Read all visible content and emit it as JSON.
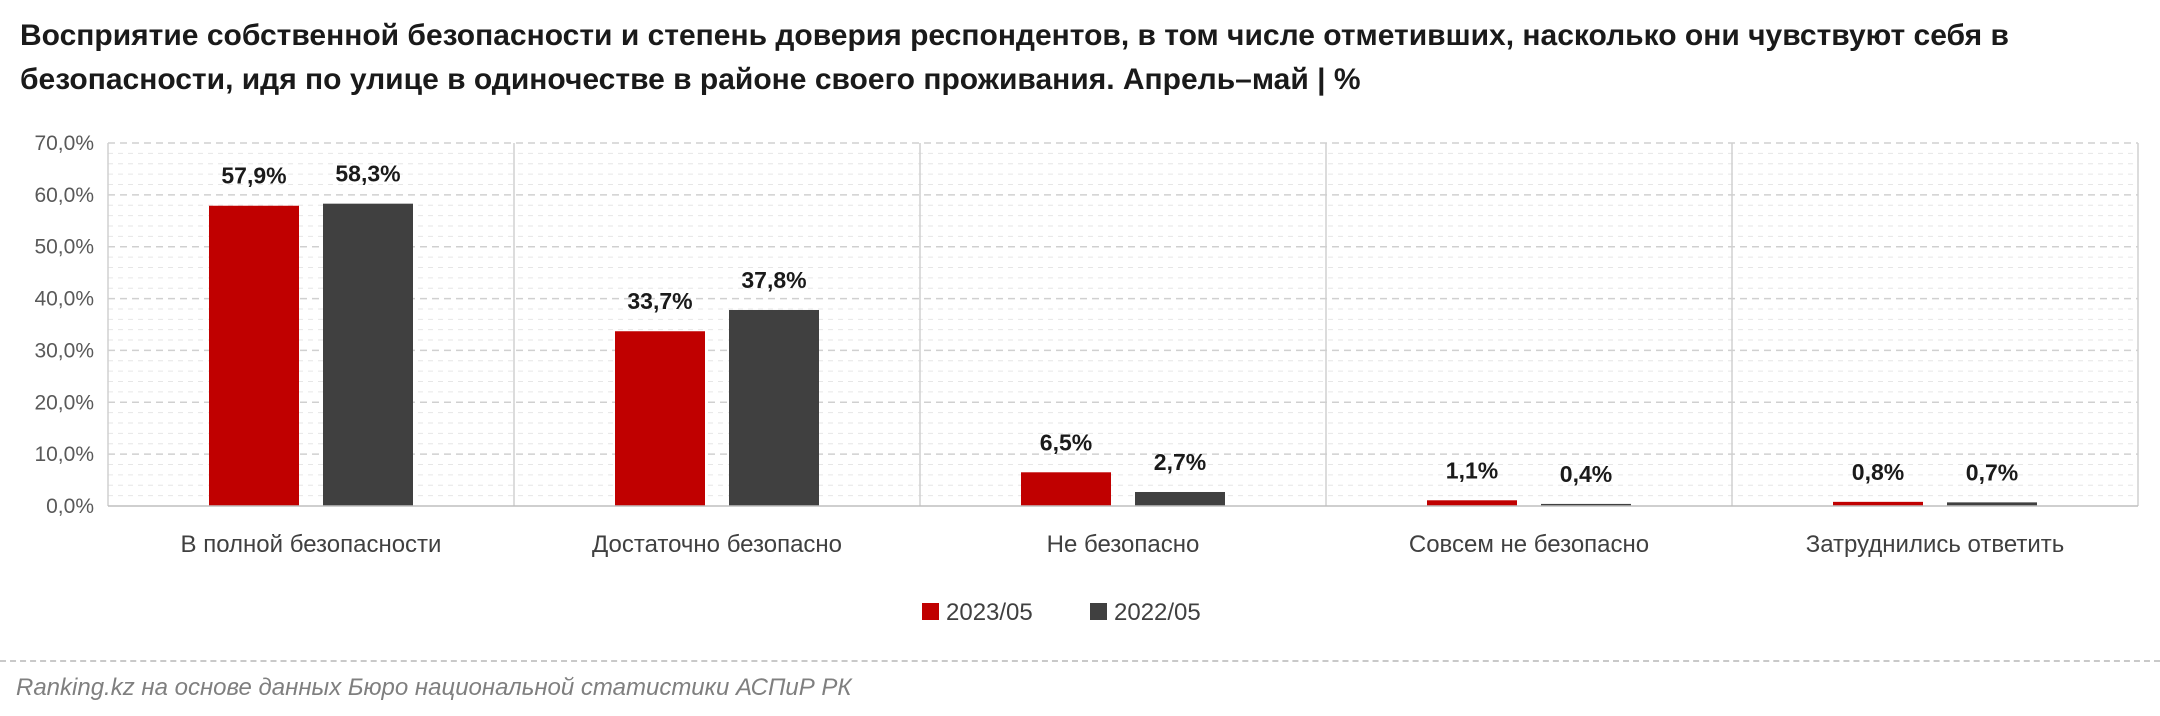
{
  "chart_data": {
    "type": "bar",
    "title": "Восприятие собственной безопасности и степень доверия респондентов, в том числе отметивших, насколько они чувствуют себя в безопасности, идя по улице в одиночестве в районе своего проживания. Апрель–май | %",
    "categories": [
      "В полной безопасности",
      "Достаточно безопасно",
      "Не безопасно",
      "Совсем не безопасно",
      "Затруднились ответить"
    ],
    "series": [
      {
        "name": "2023/05",
        "color": "#c00000",
        "values": [
          57.9,
          33.7,
          6.5,
          1.1,
          0.8
        ],
        "labels": [
          "57,9%",
          "33,7%",
          "6,5%",
          "1,1%",
          "0,8%"
        ]
      },
      {
        "name": "2022/05",
        "color": "#404040",
        "values": [
          58.3,
          37.8,
          2.7,
          0.4,
          0.7
        ],
        "labels": [
          "58,3%",
          "37,8%",
          "2,7%",
          "0,4%",
          "0,7%"
        ]
      }
    ],
    "ylim": [
      0,
      70
    ],
    "yticks": [
      0,
      10,
      20,
      30,
      40,
      50,
      60,
      70
    ],
    "ytick_labels": [
      "0,0%",
      "10,0%",
      "20,0%",
      "30,0%",
      "40,0%",
      "50,0%",
      "60,0%",
      "70,0%"
    ],
    "xlabel": "",
    "ylabel": "",
    "grid": true,
    "legend_position": "bottom"
  },
  "source": "Ranking.kz на основе данных Бюро национальной статистики АСПиР РК"
}
